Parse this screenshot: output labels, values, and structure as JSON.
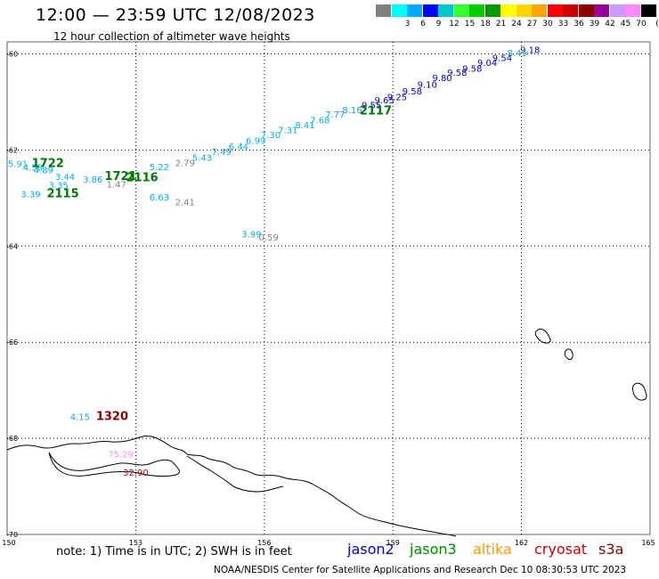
{
  "title": "12:00 — 23:59 UTC 12/08/2023",
  "subtitle": "12 hour collection of altimeter wave heights",
  "color_scale": {
    "unit": "(ft)",
    "swatches": [
      {
        "label": "",
        "color": "#808080"
      },
      {
        "label": "3",
        "color": "#00ffff"
      },
      {
        "label": "6",
        "color": "#00aaff"
      },
      {
        "label": "9",
        "color": "#0000ff"
      },
      {
        "label": "12",
        "color": "#00c8c8"
      },
      {
        "label": "15",
        "color": "#33ff33"
      },
      {
        "label": "18",
        "color": "#00cc00"
      },
      {
        "label": "21",
        "color": "#009900"
      },
      {
        "label": "24",
        "color": "#ffff00"
      },
      {
        "label": "27",
        "color": "#ffd700"
      },
      {
        "label": "30",
        "color": "#ffa500"
      },
      {
        "label": "33",
        "color": "#ff0000"
      },
      {
        "label": "36",
        "color": "#cc0000"
      },
      {
        "label": "39",
        "color": "#880000"
      },
      {
        "label": "42",
        "color": "#990099"
      },
      {
        "label": "45",
        "color": "#cc99ff"
      },
      {
        "label": "70",
        "color": "#ff88ff"
      },
      {
        "label": "",
        "color": "#000000"
      }
    ]
  },
  "map": {
    "lon_ticks": [
      "150",
      "153",
      "156",
      "159",
      "162",
      "165"
    ],
    "lat_ticks": [
      "-60",
      "-62",
      "-64",
      "-66",
      "-68",
      "-70"
    ],
    "wave_labels": [
      {
        "lon": 162.2,
        "lat": -59.98,
        "text": "9.18",
        "color": "#0000cc"
      },
      {
        "lon": 161.9,
        "lat": -60.05,
        "text": "8.45",
        "color": "#00aaff"
      },
      {
        "lon": 161.55,
        "lat": -60.15,
        "text": "9.54",
        "color": "#0000cc"
      },
      {
        "lon": 161.2,
        "lat": -60.25,
        "text": "9.04",
        "color": "#0000cc"
      },
      {
        "lon": 160.85,
        "lat": -60.37,
        "text": "9.58",
        "color": "#0000cc"
      },
      {
        "lon": 160.5,
        "lat": -60.45,
        "text": "9.58",
        "color": "#0000cc"
      },
      {
        "lon": 160.15,
        "lat": -60.57,
        "text": "9.80",
        "color": "#0000cc"
      },
      {
        "lon": 159.8,
        "lat": -60.7,
        "text": "9.10",
        "color": "#0000cc"
      },
      {
        "lon": 159.45,
        "lat": -60.84,
        "text": "9.58",
        "color": "#0000cc"
      },
      {
        "lon": 159.1,
        "lat": -60.96,
        "text": "9.25",
        "color": "#0000cc"
      },
      {
        "lon": 158.8,
        "lat": -61.03,
        "text": "9.65",
        "color": "#0000cc"
      },
      {
        "lon": 158.5,
        "lat": -61.13,
        "text": "9.55",
        "color": "#0000cc"
      },
      {
        "lon": 158.05,
        "lat": -61.23,
        "text": "8.16",
        "color": "#00aaff"
      },
      {
        "lon": 157.65,
        "lat": -61.33,
        "text": "7.77",
        "color": "#00aaff"
      },
      {
        "lon": 157.3,
        "lat": -61.45,
        "text": "7.68",
        "color": "#00aaff"
      },
      {
        "lon": 156.95,
        "lat": -61.55,
        "text": "8.41",
        "color": "#00aaff"
      },
      {
        "lon": 156.55,
        "lat": -61.65,
        "text": "7.31",
        "color": "#00aaff"
      },
      {
        "lon": 156.15,
        "lat": -61.75,
        "text": "7.30",
        "color": "#00aaff"
      },
      {
        "lon": 155.8,
        "lat": -61.87,
        "text": "6.99",
        "color": "#00aaff"
      },
      {
        "lon": 155.4,
        "lat": -61.99,
        "text": "6.44",
        "color": "#00aaff"
      },
      {
        "lon": 155.0,
        "lat": -62.1,
        "text": "7.49",
        "color": "#00aaff"
      },
      {
        "lon": 154.55,
        "lat": -62.22,
        "text": "5.43",
        "color": "#00aaff"
      },
      {
        "lon": 154.15,
        "lat": -62.34,
        "text": "2.79",
        "color": "#808080"
      },
      {
        "lon": 153.55,
        "lat": -62.42,
        "text": "5.22",
        "color": "#00aaff"
      },
      {
        "lon": 153.15,
        "lat": -62.65,
        "text": "2116",
        "color": "#007700",
        "big": true
      },
      {
        "lon": 152.65,
        "lat": -62.62,
        "text": "1721",
        "color": "#007700",
        "big": true
      },
      {
        "lon": 152.55,
        "lat": -62.78,
        "text": "1.47",
        "color": "#808080"
      },
      {
        "lon": 152.0,
        "lat": -62.68,
        "text": "3.86",
        "color": "#00aaff"
      },
      {
        "lon": 151.35,
        "lat": -62.62,
        "text": "3.44",
        "color": "#00aaff"
      },
      {
        "lon": 151.2,
        "lat": -62.8,
        "text": "3.35",
        "color": "#00aaff"
      },
      {
        "lon": 150.85,
        "lat": -62.48,
        "text": "4.89",
        "color": "#00aaff"
      },
      {
        "lon": 150.6,
        "lat": -62.43,
        "text": "4.58",
        "color": "#00aaff"
      },
      {
        "lon": 150.25,
        "lat": -62.35,
        "text": "5.91",
        "color": "#00aaff"
      },
      {
        "lon": 150.95,
        "lat": -62.35,
        "text": "1722",
        "color": "#007700",
        "big": true
      },
      {
        "lon": 150.55,
        "lat": -62.98,
        "text": "3.39",
        "color": "#00aaff"
      },
      {
        "lon": 151.3,
        "lat": -62.98,
        "text": "2115",
        "color": "#007700",
        "big": true
      },
      {
        "lon": 153.55,
        "lat": -63.05,
        "text": "6.63",
        "color": "#00aaff"
      },
      {
        "lon": 154.15,
        "lat": -63.15,
        "text": "2.41",
        "color": "#808080"
      },
      {
        "lon": 155.7,
        "lat": -63.82,
        "text": "3.99",
        "color": "#00aaff"
      },
      {
        "lon": 156.1,
        "lat": -63.88,
        "text": "0.59",
        "color": "#808080"
      },
      {
        "lon": 158.6,
        "lat": -61.26,
        "text": "2117",
        "color": "#007700",
        "big": true
      },
      {
        "lon": 151.7,
        "lat": -67.62,
        "text": "4.15",
        "color": "#00aaff"
      },
      {
        "lon": 152.45,
        "lat": -67.62,
        "text": "1320",
        "color": "#880000",
        "big": true
      },
      {
        "lon": 152.65,
        "lat": -68.4,
        "text": "75.29",
        "color": "#ff88ff"
      },
      {
        "lon": 153.0,
        "lat": -68.78,
        "text": "32.90",
        "color": "#cc0000"
      }
    ]
  },
  "note": "note:  1) Time is in UTC;  2) SWH is in feet",
  "satellites": [
    {
      "name": "jason2",
      "color": "#0000cc"
    },
    {
      "name": "jason3",
      "color": "#008800"
    },
    {
      "name": "altika",
      "color": "#ff9900"
    },
    {
      "name": "cryosat",
      "color": "#cc0000"
    },
    {
      "name": "s3a",
      "color": "#880000"
    }
  ],
  "footer": "NOAA/NESDIS Center for Satellite Applications and Research     Dec 10 08:30:53 UTC 2023"
}
